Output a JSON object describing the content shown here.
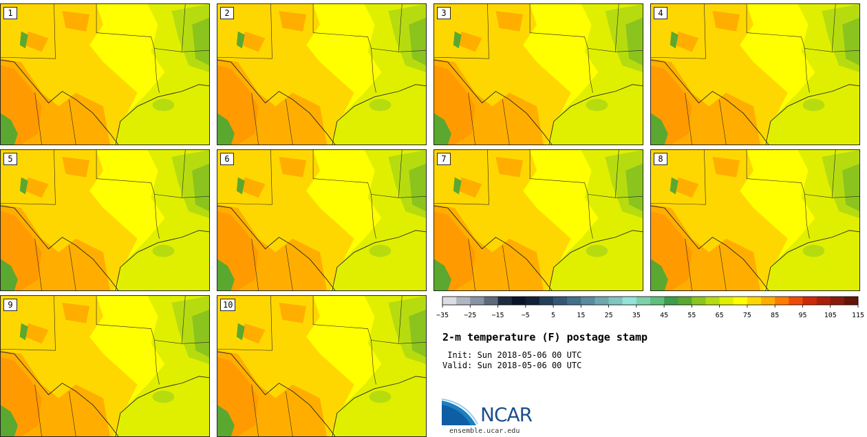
{
  "title": "2-m temperature (F) postage stamp",
  "init": " Init: Sun 2018-05-06 00 UTC",
  "valid": "Valid: Sun 2018-05-06 00 UTC",
  "logo_text": "NCAR",
  "website": "ensemble.ucar.edu",
  "panels": [
    "1",
    "2",
    "3",
    "4",
    "5",
    "6",
    "7",
    "8",
    "9",
    "10"
  ],
  "colorbar": {
    "colors": [
      "#dcdce4",
      "#b0b6c0",
      "#8a93a2",
      "#5e6a7c",
      "#1f2c40",
      "#0a1628",
      "#132238",
      "#25405a",
      "#345874",
      "#456f8a",
      "#5a8b9e",
      "#6ea7ae",
      "#80c4c0",
      "#94e2d8",
      "#7dd0a8",
      "#5ebf7e",
      "#3e9c4a",
      "#5aa830",
      "#8cc41e",
      "#b6dc10",
      "#e0ef00",
      "#ffff00",
      "#ffd700",
      "#ffae00",
      "#ff7c00",
      "#f04a08",
      "#cc2a08",
      "#ac1e0c",
      "#8a1a0e",
      "#641408"
    ],
    "tick_labels": [
      "−35",
      "−25",
      "−15",
      "−5",
      "5",
      "15",
      "25",
      "35",
      "45",
      "55",
      "65",
      "75",
      "85",
      "95",
      "105",
      "115"
    ]
  }
}
